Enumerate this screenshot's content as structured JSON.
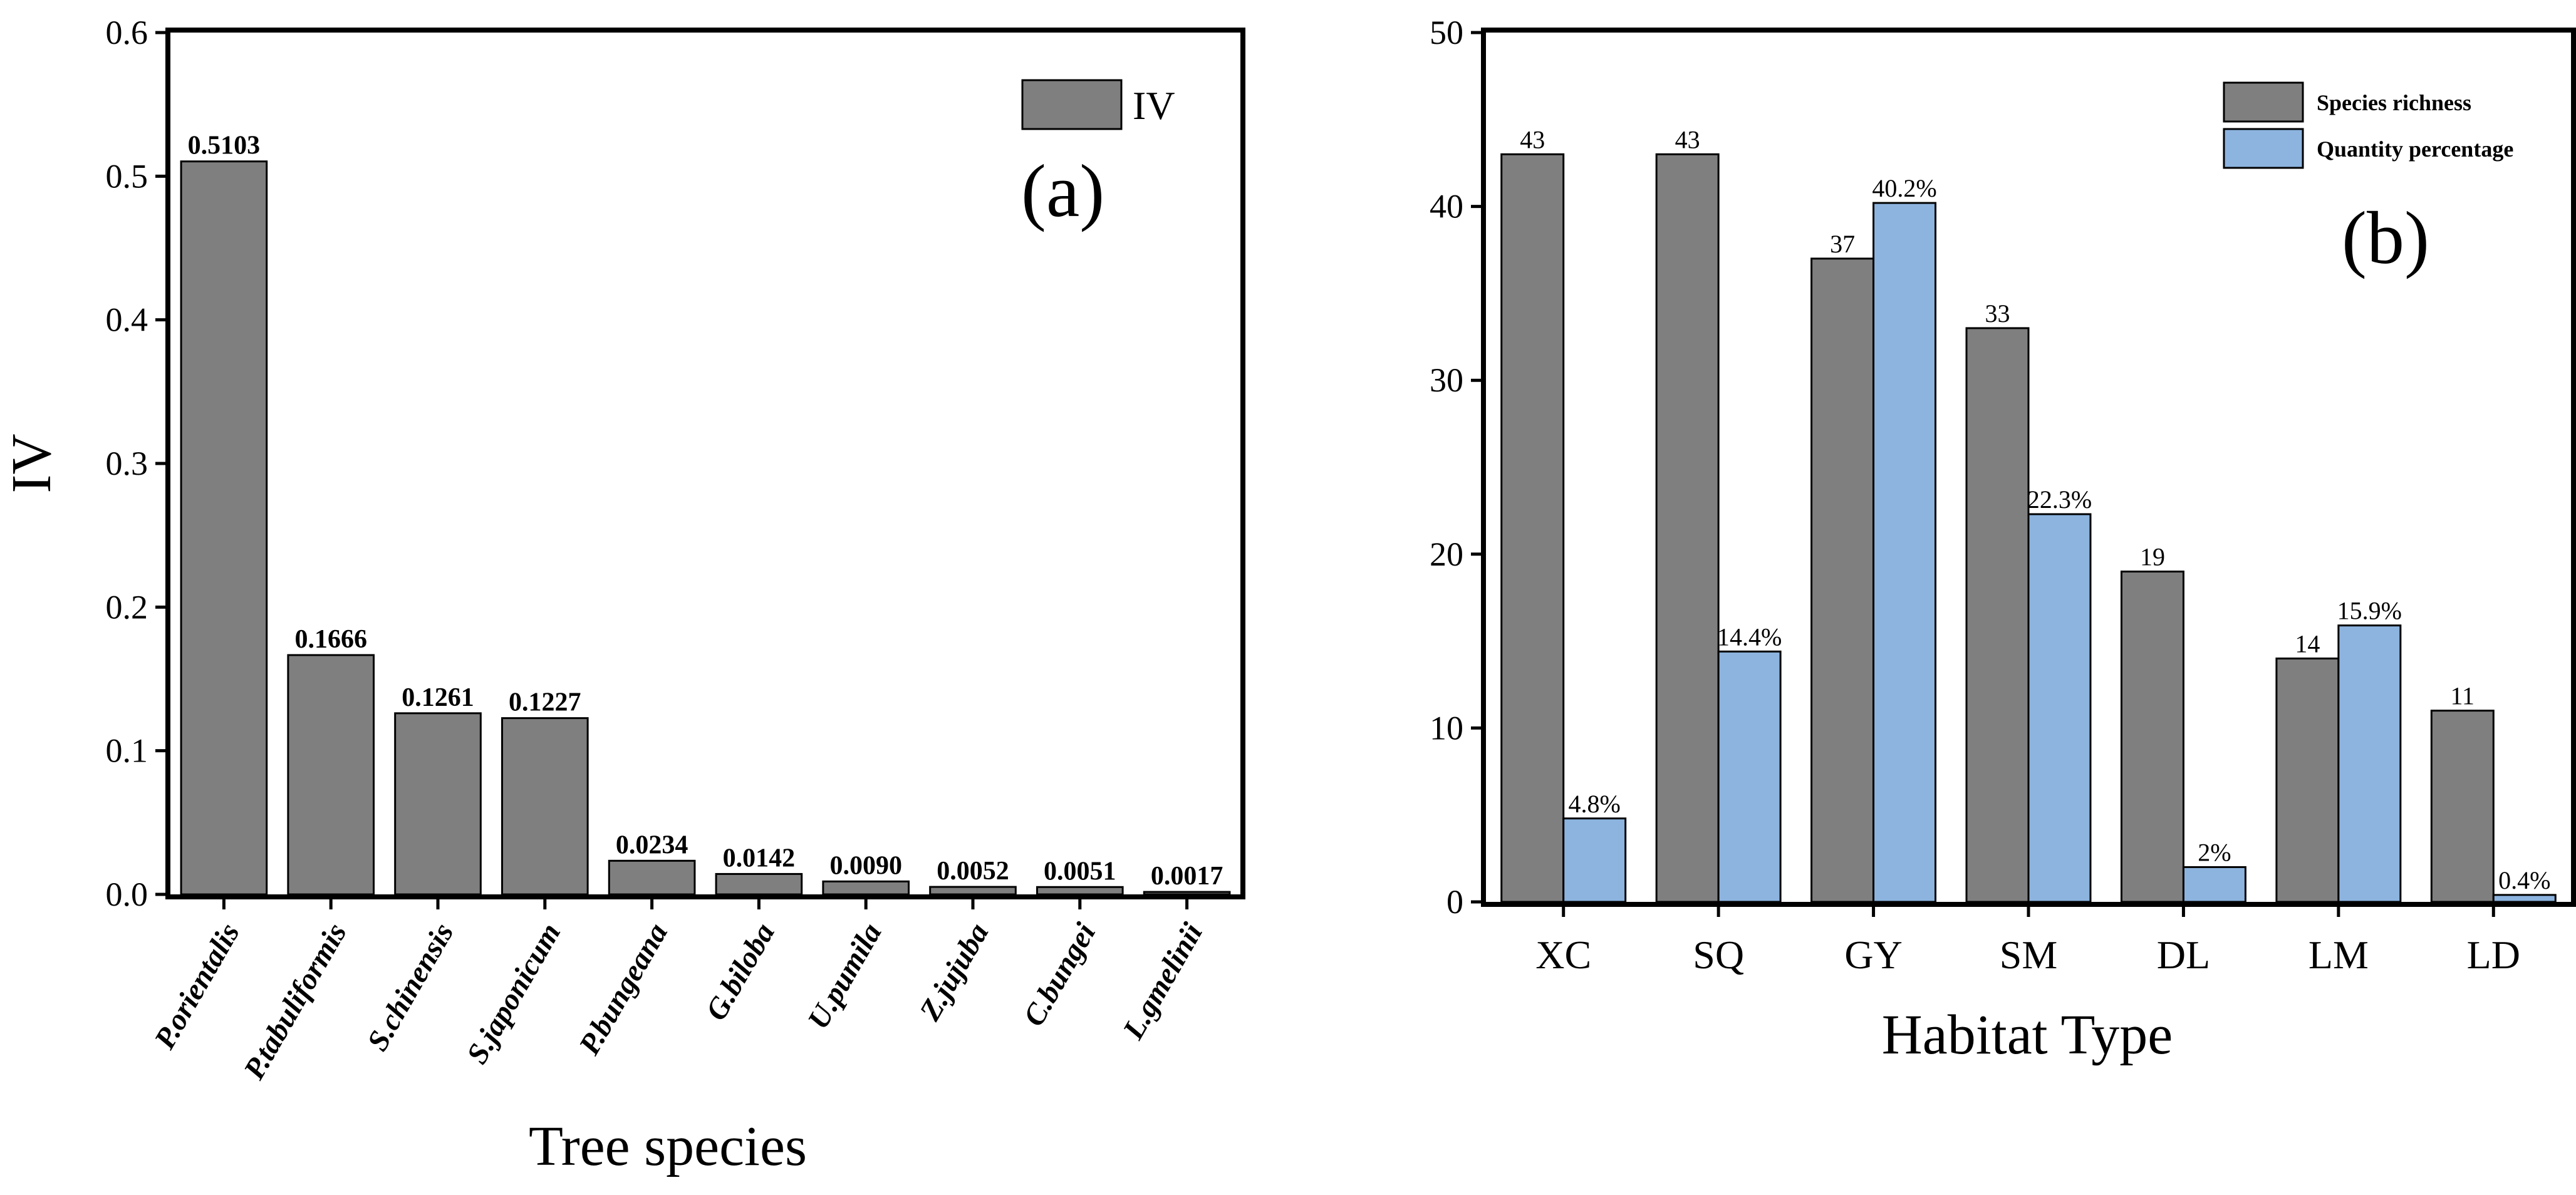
{
  "chart_data": [
    {
      "type": "bar",
      "panel_label": "(a)",
      "title": "",
      "xlabel": "Tree species",
      "ylabel": "IV",
      "ylim": [
        0,
        0.6
      ],
      "yticks": [
        "0.0",
        "0.1",
        "0.2",
        "0.3",
        "0.4",
        "0.5",
        "0.6"
      ],
      "categories": [
        "P.orientalis",
        "P.tabuliformis",
        "S.chinensis",
        "S.japonicum",
        "P.bungeana",
        "G.biloba",
        "U.pumila",
        "Z.jujuba",
        "C.bungei",
        "L.gmelinii"
      ],
      "series": [
        {
          "name": "IV",
          "color": "#7f7f7f",
          "values": [
            0.5103,
            0.1666,
            0.1261,
            0.1227,
            0.0234,
            0.0142,
            0.009,
            0.0052,
            0.0051,
            0.0017
          ],
          "labels": [
            "0.5103",
            "0.1666",
            "0.1261",
            "0.1227",
            "0.0234",
            "0.0142",
            "0.0090",
            "0.0052",
            "0.0051",
            "0.0017"
          ]
        }
      ],
      "legend": "top-right"
    },
    {
      "type": "bar",
      "panel_label": "(b)",
      "title": "",
      "xlabel": "Habitat Type",
      "ylabel": "",
      "ylim": [
        0,
        50
      ],
      "yticks": [
        "0",
        "10",
        "20",
        "30",
        "40",
        "50"
      ],
      "categories": [
        "XC",
        "SQ",
        "GY",
        "SM",
        "DL",
        "LM",
        "LD"
      ],
      "series": [
        {
          "name": "Species richness",
          "color": "#7f7f7f",
          "values": [
            43,
            43,
            37,
            33,
            19,
            14,
            11
          ],
          "labels": [
            "43",
            "43",
            "37",
            "33",
            "19",
            "14",
            "11"
          ]
        },
        {
          "name": "Quantity percentage",
          "color": "#8db4df",
          "values": [
            4.8,
            14.4,
            40.2,
            22.3,
            2,
            15.9,
            0.4
          ],
          "labels": [
            "4.8%",
            "14.4%",
            "40.2%",
            "22.3%",
            "2%",
            "15.9%",
            "0.4%"
          ]
        }
      ],
      "legend": "top-right"
    }
  ]
}
